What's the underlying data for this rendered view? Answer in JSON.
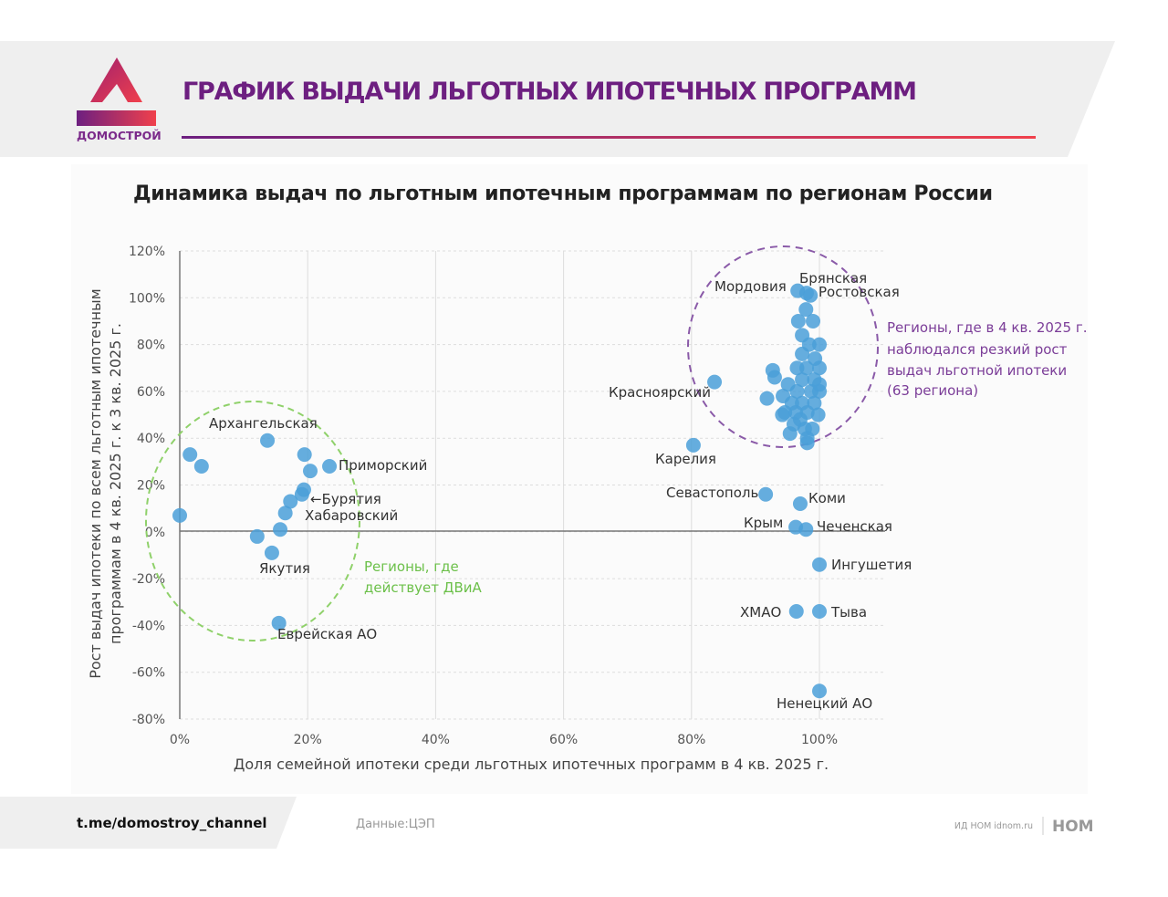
{
  "header": {
    "logo_text": "ДОМОСТРОЙ",
    "title": "ГРАФИК ВЫДАЧИ ЛЬГОТНЫХ ИПОТЕЧНЫХ ПРОГРАММ"
  },
  "footer": {
    "channel": "t.me/domostroy_channel",
    "source": "Данные:ЦЭП",
    "credit": "ИД НОМ idnom.ru",
    "brand": "НОМ"
  },
  "colors": {
    "point": "#4a9fd8",
    "accent": "#6d1f80",
    "red": "#e8414f",
    "green": "#6cc04a",
    "purple": "#7b3d98"
  },
  "chart_data": {
    "type": "scatter",
    "title": "Динамика выдач по льготным ипотечным программам по регионам России",
    "xlabel": "Доля семейной ипотеки среди льготных ипотечных программ в 4 кв. 2025 г.",
    "ylabel_lines": [
      "Рост выдач ипотеки по всем льготным ипотечным",
      "программам в 4 кв. 2025 г. к 3 кв. 2025 г."
    ],
    "xlim": [
      0,
      100
    ],
    "ylim": [
      -80,
      120
    ],
    "xticks": [
      "0%",
      "20%",
      "40%",
      "60%",
      "80%",
      "100%"
    ],
    "yticks": [
      "120%",
      "100%",
      "80%",
      "60%",
      "40%",
      "20%",
      "0%",
      "-20%",
      "-40%",
      "-60%",
      "-80%"
    ],
    "grid": true,
    "points": [
      [
        0,
        7
      ],
      [
        1.6,
        33
      ],
      [
        3.4,
        28
      ],
      [
        13.7,
        39
      ],
      [
        19.5,
        33
      ],
      [
        20.4,
        26
      ],
      [
        23.4,
        28
      ],
      [
        19.4,
        18
      ],
      [
        19.1,
        16
      ],
      [
        17.3,
        13
      ],
      [
        16.5,
        8
      ],
      [
        15.7,
        1
      ],
      [
        12.1,
        -2
      ],
      [
        14.4,
        -9
      ],
      [
        15.5,
        -39
      ],
      [
        83.6,
        64
      ],
      [
        80.3,
        37
      ],
      [
        91.6,
        16
      ],
      [
        97,
        12
      ],
      [
        96.3,
        2
      ],
      [
        97.9,
        1
      ],
      [
        100,
        -14
      ],
      [
        96.4,
        -34
      ],
      [
        100,
        -34
      ],
      [
        100,
        -68
      ],
      [
        96.6,
        103
      ],
      [
        98,
        102
      ],
      [
        98.6,
        101
      ],
      [
        97.9,
        95
      ],
      [
        99,
        90
      ],
      [
        96.7,
        90
      ],
      [
        97.3,
        84
      ],
      [
        98.4,
        80
      ],
      [
        100,
        80
      ],
      [
        97.3,
        76
      ],
      [
        99.3,
        74
      ],
      [
        98,
        70
      ],
      [
        100,
        70
      ],
      [
        92.7,
        69
      ],
      [
        93,
        66
      ],
      [
        96.5,
        70
      ],
      [
        97.3,
        65
      ],
      [
        99.2,
        65
      ],
      [
        95.1,
        63
      ],
      [
        96.5,
        60
      ],
      [
        98.7,
        60
      ],
      [
        100,
        60
      ],
      [
        91.8,
        57
      ],
      [
        94.3,
        58
      ],
      [
        95.7,
        55
      ],
      [
        97.3,
        55
      ],
      [
        99.2,
        55
      ],
      [
        94.6,
        51
      ],
      [
        96.3,
        51
      ],
      [
        98.1,
        51
      ],
      [
        99.8,
        50
      ],
      [
        94.2,
        50
      ],
      [
        96,
        46
      ],
      [
        97.7,
        44
      ],
      [
        98.9,
        44
      ],
      [
        95.4,
        42
      ],
      [
        98.1,
        40
      ],
      [
        98.1,
        38
      ],
      [
        97,
        48
      ],
      [
        100,
        63
      ]
    ],
    "labels": [
      "Архангельская",
      "Приморский",
      "←Бурятия",
      "Хабаровский",
      "Якутия",
      "Еврейская АО",
      "Мордовия",
      "Брянская",
      "Ростовская",
      "Красноярский",
      "Карелия",
      "Севастополь",
      "Коми",
      "Крым",
      "Чеченская",
      "Ингушетия",
      "ХМАО",
      "Тыва",
      "Ненецкий АО"
    ],
    "annotations": {
      "dvia": [
        "Регионы, где",
        "действует ДВиА"
      ],
      "growth": [
        "Регионы, где в 4 кв. 2025 г.",
        "наблюдался резкий рост",
        "выдач льготной ипотеки",
        "(63 региона)"
      ]
    }
  }
}
